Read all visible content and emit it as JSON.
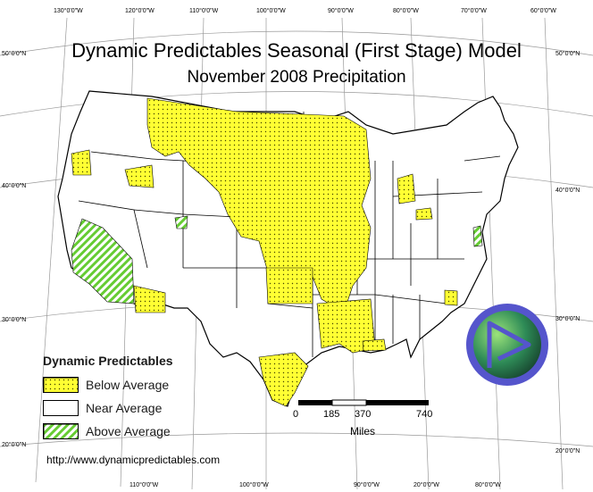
{
  "title": "Dynamic Predictables Seasonal (First Stage) Model",
  "subtitle": "November 2008 Precipitation",
  "top_ticks": [
    "130°0'0\"W",
    "120°0'0\"W",
    "110°0'0\"W",
    "100°0'0\"W",
    "90°0'0\"W",
    "80°0'0\"W",
    "70°0'0\"W",
    "60°0'0\"W"
  ],
  "bottom_ticks": [
    "110°0'0\"W",
    "100°0'0\"W",
    "90°0'0\"W",
    "20°0'0\"W",
    "80°0'0\"W"
  ],
  "left_ticks": [
    "50°0'0\"N",
    "40°0'0\"N",
    "30°0'0\"N",
    "20°0'0\"N"
  ],
  "right_ticks": [
    "50°0'0\"N",
    "40°0'0\"N",
    "30°0'0\"N",
    "20°0'0\"N"
  ],
  "legend": {
    "title": "Dynamic Predictables",
    "items": [
      {
        "label": "Below Average",
        "pattern": "yellow-dots"
      },
      {
        "label": "Near Average",
        "pattern": "white"
      },
      {
        "label": "Above Average",
        "pattern": "green-hatch"
      }
    ]
  },
  "scale_bar": {
    "ticks": [
      "0",
      "185",
      "370",
      "740"
    ],
    "units": "Miles"
  },
  "url": "http://www.dynamicpredictables.com",
  "colors": {
    "below": "#ffff33",
    "above": "#66cc33",
    "outline": "#000000",
    "logo_ring": "#5555cc",
    "logo_fill": "#2e8b57"
  },
  "icons": {
    "logo": "dynamic-predictables-logo-icon"
  }
}
